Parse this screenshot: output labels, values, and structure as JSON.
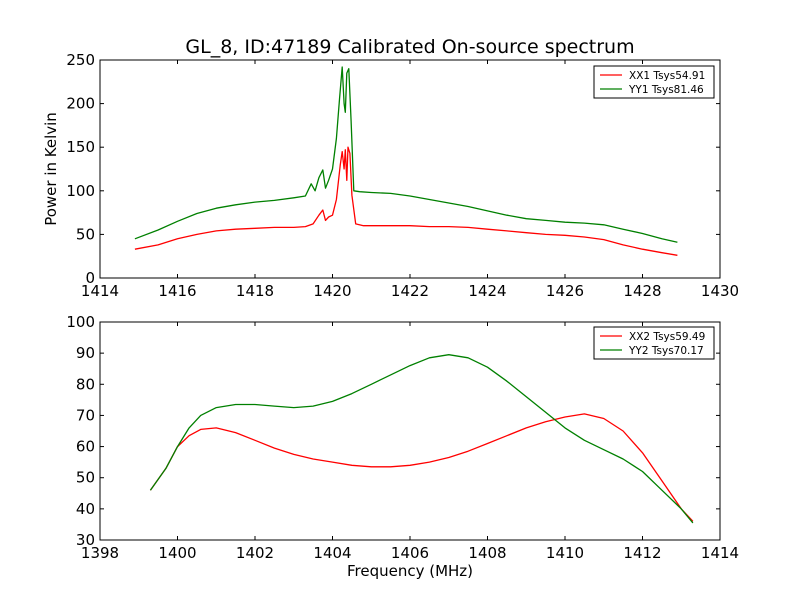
{
  "figure": {
    "title": "GL_8, ID:47189 Calibrated On-source spectrum"
  },
  "chart_data": [
    {
      "type": "line",
      "title": "GL_8, ID:47189 Calibrated On-source spectrum",
      "xlabel": "",
      "ylabel": "Power in Kelvin",
      "xlim": [
        1414,
        1430
      ],
      "ylim": [
        0,
        250
      ],
      "xticks": [
        "1414",
        "1416",
        "1418",
        "1420",
        "1422",
        "1424",
        "1426",
        "1428",
        "1430"
      ],
      "yticks": [
        "0",
        "50",
        "100",
        "150",
        "200",
        "250"
      ],
      "grid": false,
      "legend": "top-right",
      "series": [
        {
          "name": "XX1 Tsys54.91",
          "color": "#ff0000",
          "points": [
            [
              1414.9,
              33
            ],
            [
              1415.5,
              38
            ],
            [
              1416.0,
              45
            ],
            [
              1416.5,
              50
            ],
            [
              1417.0,
              54
            ],
            [
              1417.5,
              56
            ],
            [
              1418.0,
              57
            ],
            [
              1418.5,
              58
            ],
            [
              1419.0,
              58
            ],
            [
              1419.3,
              59
            ],
            [
              1419.5,
              62
            ],
            [
              1419.65,
              72
            ],
            [
              1419.75,
              78
            ],
            [
              1419.82,
              66
            ],
            [
              1419.9,
              70
            ],
            [
              1420.0,
              72
            ],
            [
              1420.1,
              90
            ],
            [
              1420.2,
              130
            ],
            [
              1420.25,
              145
            ],
            [
              1420.3,
              125
            ],
            [
              1420.33,
              147
            ],
            [
              1420.37,
              112
            ],
            [
              1420.4,
              150
            ],
            [
              1420.45,
              143
            ],
            [
              1420.5,
              95
            ],
            [
              1420.6,
              62
            ],
            [
              1420.8,
              60
            ],
            [
              1421.5,
              60
            ],
            [
              1422.0,
              60
            ],
            [
              1422.5,
              59
            ],
            [
              1423.0,
              59
            ],
            [
              1423.5,
              58
            ],
            [
              1424.0,
              56
            ],
            [
              1424.5,
              54
            ],
            [
              1425.0,
              52
            ],
            [
              1425.5,
              50
            ],
            [
              1426.0,
              49
            ],
            [
              1426.5,
              47
            ],
            [
              1427.0,
              44
            ],
            [
              1427.5,
              38
            ],
            [
              1428.0,
              33
            ],
            [
              1428.5,
              29
            ],
            [
              1428.9,
              26
            ]
          ]
        },
        {
          "name": "YY1 Tsys81.46",
          "color": "#008000",
          "points": [
            [
              1414.9,
              45
            ],
            [
              1415.5,
              55
            ],
            [
              1416.0,
              65
            ],
            [
              1416.5,
              74
            ],
            [
              1417.0,
              80
            ],
            [
              1417.5,
              84
            ],
            [
              1418.0,
              87
            ],
            [
              1418.5,
              89
            ],
            [
              1419.0,
              92
            ],
            [
              1419.3,
              94
            ],
            [
              1419.45,
              108
            ],
            [
              1419.55,
              100
            ],
            [
              1419.65,
              115
            ],
            [
              1419.75,
              124
            ],
            [
              1419.82,
              103
            ],
            [
              1419.9,
              112
            ],
            [
              1420.0,
              125
            ],
            [
              1420.1,
              160
            ],
            [
              1420.18,
              205
            ],
            [
              1420.25,
              242
            ],
            [
              1420.3,
              200
            ],
            [
              1420.33,
              190
            ],
            [
              1420.37,
              235
            ],
            [
              1420.42,
              240
            ],
            [
              1420.48,
              180
            ],
            [
              1420.55,
              100
            ],
            [
              1420.7,
              99
            ],
            [
              1421.0,
              98
            ],
            [
              1421.5,
              97
            ],
            [
              1422.0,
              94
            ],
            [
              1422.5,
              90
            ],
            [
              1423.0,
              86
            ],
            [
              1423.5,
              82
            ],
            [
              1424.0,
              77
            ],
            [
              1424.5,
              72
            ],
            [
              1425.0,
              68
            ],
            [
              1425.5,
              66
            ],
            [
              1426.0,
              64
            ],
            [
              1426.5,
              63
            ],
            [
              1427.0,
              61
            ],
            [
              1427.5,
              56
            ],
            [
              1428.0,
              51
            ],
            [
              1428.5,
              45
            ],
            [
              1428.9,
              41
            ]
          ]
        }
      ]
    },
    {
      "type": "line",
      "title": "",
      "xlabel": "Frequency (MHz)",
      "ylabel": "",
      "xlim": [
        1398,
        1414
      ],
      "ylim": [
        30,
        100
      ],
      "xticks": [
        "1398",
        "1400",
        "1402",
        "1404",
        "1406",
        "1408",
        "1410",
        "1412",
        "1414"
      ],
      "yticks": [
        "30",
        "40",
        "50",
        "60",
        "70",
        "80",
        "90",
        "100"
      ],
      "grid": false,
      "legend": "top-right",
      "series": [
        {
          "name": "XX2 Tsys59.49",
          "color": "#ff0000",
          "points": [
            [
              1399.3,
              46
            ],
            [
              1399.7,
              53
            ],
            [
              1400.0,
              60
            ],
            [
              1400.3,
              63.5
            ],
            [
              1400.6,
              65.5
            ],
            [
              1401.0,
              66
            ],
            [
              1401.5,
              64.5
            ],
            [
              1402.0,
              62
            ],
            [
              1402.5,
              59.5
            ],
            [
              1403.0,
              57.5
            ],
            [
              1403.5,
              56
            ],
            [
              1404.0,
              55
            ],
            [
              1404.5,
              54
            ],
            [
              1405.0,
              53.5
            ],
            [
              1405.5,
              53.5
            ],
            [
              1406.0,
              54
            ],
            [
              1406.5,
              55
            ],
            [
              1407.0,
              56.5
            ],
            [
              1407.5,
              58.5
            ],
            [
              1408.0,
              61
            ],
            [
              1408.5,
              63.5
            ],
            [
              1409.0,
              66
            ],
            [
              1409.5,
              68
            ],
            [
              1410.0,
              69.5
            ],
            [
              1410.5,
              70.5
            ],
            [
              1411.0,
              69
            ],
            [
              1411.5,
              65
            ],
            [
              1412.0,
              58
            ],
            [
              1412.5,
              49
            ],
            [
              1413.0,
              40
            ],
            [
              1413.3,
              36
            ]
          ]
        },
        {
          "name": "YY2 Tsys70.17",
          "color": "#008000",
          "points": [
            [
              1399.3,
              46
            ],
            [
              1399.7,
              53
            ],
            [
              1400.0,
              60
            ],
            [
              1400.3,
              66
            ],
            [
              1400.6,
              70
            ],
            [
              1401.0,
              72.5
            ],
            [
              1401.5,
              73.5
            ],
            [
              1402.0,
              73.5
            ],
            [
              1402.5,
              73
            ],
            [
              1403.0,
              72.5
            ],
            [
              1403.5,
              73
            ],
            [
              1404.0,
              74.5
            ],
            [
              1404.5,
              77
            ],
            [
              1405.0,
              80
            ],
            [
              1405.5,
              83
            ],
            [
              1406.0,
              86
            ],
            [
              1406.5,
              88.5
            ],
            [
              1407.0,
              89.5
            ],
            [
              1407.5,
              88.5
            ],
            [
              1408.0,
              85.5
            ],
            [
              1408.5,
              81
            ],
            [
              1409.0,
              76
            ],
            [
              1409.5,
              71
            ],
            [
              1410.0,
              66
            ],
            [
              1410.5,
              62
            ],
            [
              1411.0,
              59
            ],
            [
              1411.5,
              56
            ],
            [
              1412.0,
              52
            ],
            [
              1412.5,
              46
            ],
            [
              1413.0,
              40
            ],
            [
              1413.3,
              35.5
            ]
          ]
        }
      ]
    }
  ]
}
